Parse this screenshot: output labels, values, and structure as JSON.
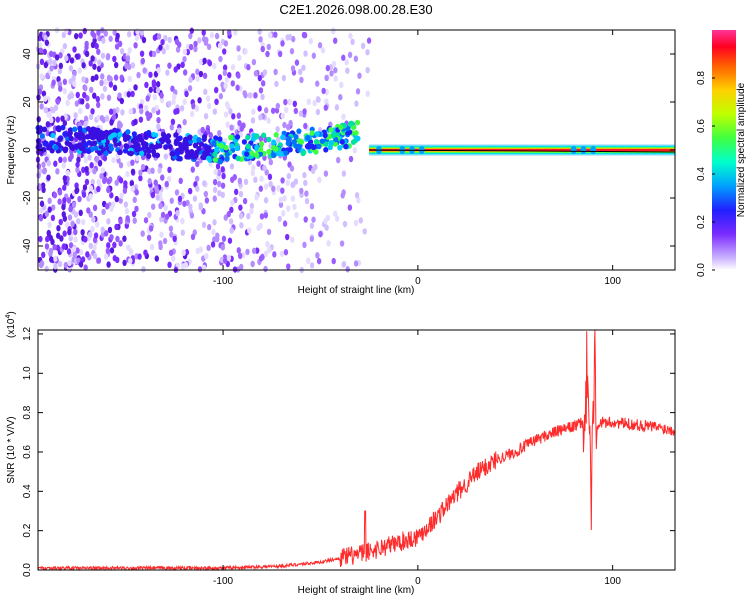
{
  "title": "C2E1.2026.098.00.28.E30",
  "colors": {
    "snr_line": "#ff2a2a",
    "scatter": "#7a2bff"
  },
  "chart_data": [
    {
      "id": "spectrogram",
      "type": "heatmap",
      "xlabel": "Height of straight line (km)",
      "ylabel": "Frequency (Hz)",
      "xlim": [
        -195,
        132
      ],
      "ylim": [
        -50,
        50
      ],
      "xticks": [
        -100,
        0,
        100
      ],
      "yticks": [
        -40,
        -20,
        0,
        20,
        40
      ],
      "colorbar": {
        "label": "Normalized spectral amplitude",
        "range": [
          0.0,
          1.0
        ],
        "ticks": [
          0.0,
          0.2,
          0.4,
          0.6,
          0.8
        ],
        "colormap": [
          "#ffffff",
          "#cbb3ff",
          "#7a2bff",
          "#2020ff",
          "#00c8ff",
          "#00ff80",
          "#80ff00",
          "#ffff00",
          "#ff8000",
          "#ff0000",
          "#ff3399"
        ]
      },
      "features": [
        {
          "name": "diffuse-noise",
          "x_range": [
            -195,
            -25
          ],
          "freq_range": [
            -50,
            50
          ],
          "amplitude": 0.15
        },
        {
          "name": "signal-trend",
          "x": [
            -195,
            -150,
            -100,
            -60,
            -30
          ],
          "freq": [
            5,
            3,
            0,
            3,
            7
          ],
          "amplitude": 0.45
        },
        {
          "name": "stable-band",
          "x_range": [
            -25,
            132
          ],
          "freq": [
            0,
            -1
          ],
          "amplitude": 0.9
        }
      ]
    },
    {
      "id": "snr",
      "type": "line",
      "xlabel": "Height of straight line (km)",
      "ylabel": "SNR (10 * V/V)",
      "yscale_label": "(x10",
      "yscale_exp": "4",
      "yscale_close": ")",
      "xlim": [
        -195,
        132
      ],
      "ylim": [
        0,
        1.22
      ],
      "xticks": [
        -100,
        0,
        100
      ],
      "yticks": [
        0.0,
        0.2,
        0.4,
        0.6,
        0.8,
        1.0,
        1.2
      ],
      "series": [
        {
          "name": "SNR",
          "x": [
            -195,
            -150,
            -100,
            -70,
            -50,
            -40,
            -30,
            -20,
            -10,
            0,
            10,
            20,
            30,
            40,
            50,
            60,
            70,
            80,
            85,
            88,
            90,
            95,
            100,
            110,
            120,
            132
          ],
          "y": [
            0.01,
            0.01,
            0.01,
            0.02,
            0.04,
            0.06,
            0.08,
            0.11,
            0.14,
            0.17,
            0.27,
            0.39,
            0.49,
            0.56,
            0.6,
            0.66,
            0.7,
            0.73,
            0.75,
            0.77,
            0.74,
            0.75,
            0.75,
            0.74,
            0.73,
            0.71
          ],
          "spikes": [
            {
              "x": -27,
              "y": 0.3
            },
            {
              "x": 87,
              "y": 1.07
            },
            {
              "x": 89,
              "y": 0.27
            },
            {
              "x": 91,
              "y": 1.22
            }
          ]
        }
      ]
    }
  ]
}
